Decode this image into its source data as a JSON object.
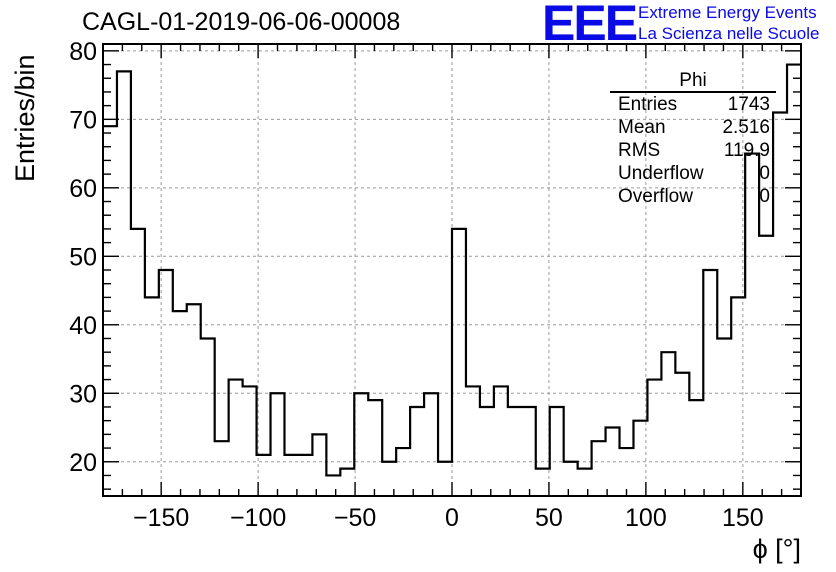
{
  "title": "CAGL-01-2019-06-06-00008",
  "logo": {
    "text": "EEE",
    "line1": "Extreme Energy Events",
    "line2": "La Scienza nelle Scuole",
    "color": "#0a0ae6"
  },
  "stats": {
    "name": "Phi",
    "rows": [
      {
        "key": "Entries",
        "value": "1743"
      },
      {
        "key": "Mean",
        "value": "2.516"
      },
      {
        "key": "RMS",
        "value": "119.9"
      },
      {
        "key": "Underflow",
        "value": "0"
      },
      {
        "key": "Overflow",
        "value": "0"
      }
    ]
  },
  "chart_data": {
    "type": "bar",
    "title": "CAGL-01-2019-06-06-00008",
    "xlabel": "ϕ [°]",
    "ylabel": "Entries/bin",
    "xlim": [
      -180,
      180
    ],
    "ylim": [
      15,
      81
    ],
    "bin_width": 7.2,
    "x_ticks": [
      -150,
      -100,
      -50,
      0,
      50,
      100,
      150
    ],
    "x_tick_labels": [
      "−150",
      "−100",
      "−50",
      "0",
      "50",
      "100",
      "150"
    ],
    "y_ticks": [
      20,
      30,
      40,
      50,
      60,
      70,
      80
    ],
    "grid": true,
    "bin_low_edges": [
      -180,
      -172.8,
      -165.6,
      -158.4,
      -151.2,
      -144,
      -136.8,
      -129.6,
      -122.4,
      -115.2,
      -108,
      -100.8,
      -93.6,
      -86.4,
      -79.2,
      -72,
      -64.8,
      -57.6,
      -50.4,
      -43.2,
      -36,
      -28.8,
      -21.6,
      -14.4,
      -7.2,
      0,
      7.2,
      14.4,
      21.6,
      28.8,
      36,
      43.2,
      50.4,
      57.6,
      64.8,
      72,
      79.2,
      86.4,
      93.6,
      100.8,
      108,
      115.2,
      122.4,
      129.6,
      136.8,
      144,
      151.2,
      158.4,
      165.6,
      172.8
    ],
    "values": [
      69,
      77,
      54,
      44,
      48,
      42,
      43,
      38,
      23,
      32,
      31,
      21,
      30,
      21,
      21,
      24,
      18,
      19,
      30,
      29,
      20,
      22,
      28,
      30,
      20,
      54,
      31,
      28,
      31,
      28,
      28,
      19,
      28,
      20,
      19,
      23,
      25,
      22,
      26,
      32,
      36,
      33,
      29,
      48,
      38,
      44,
      65,
      53,
      71,
      78
    ]
  }
}
